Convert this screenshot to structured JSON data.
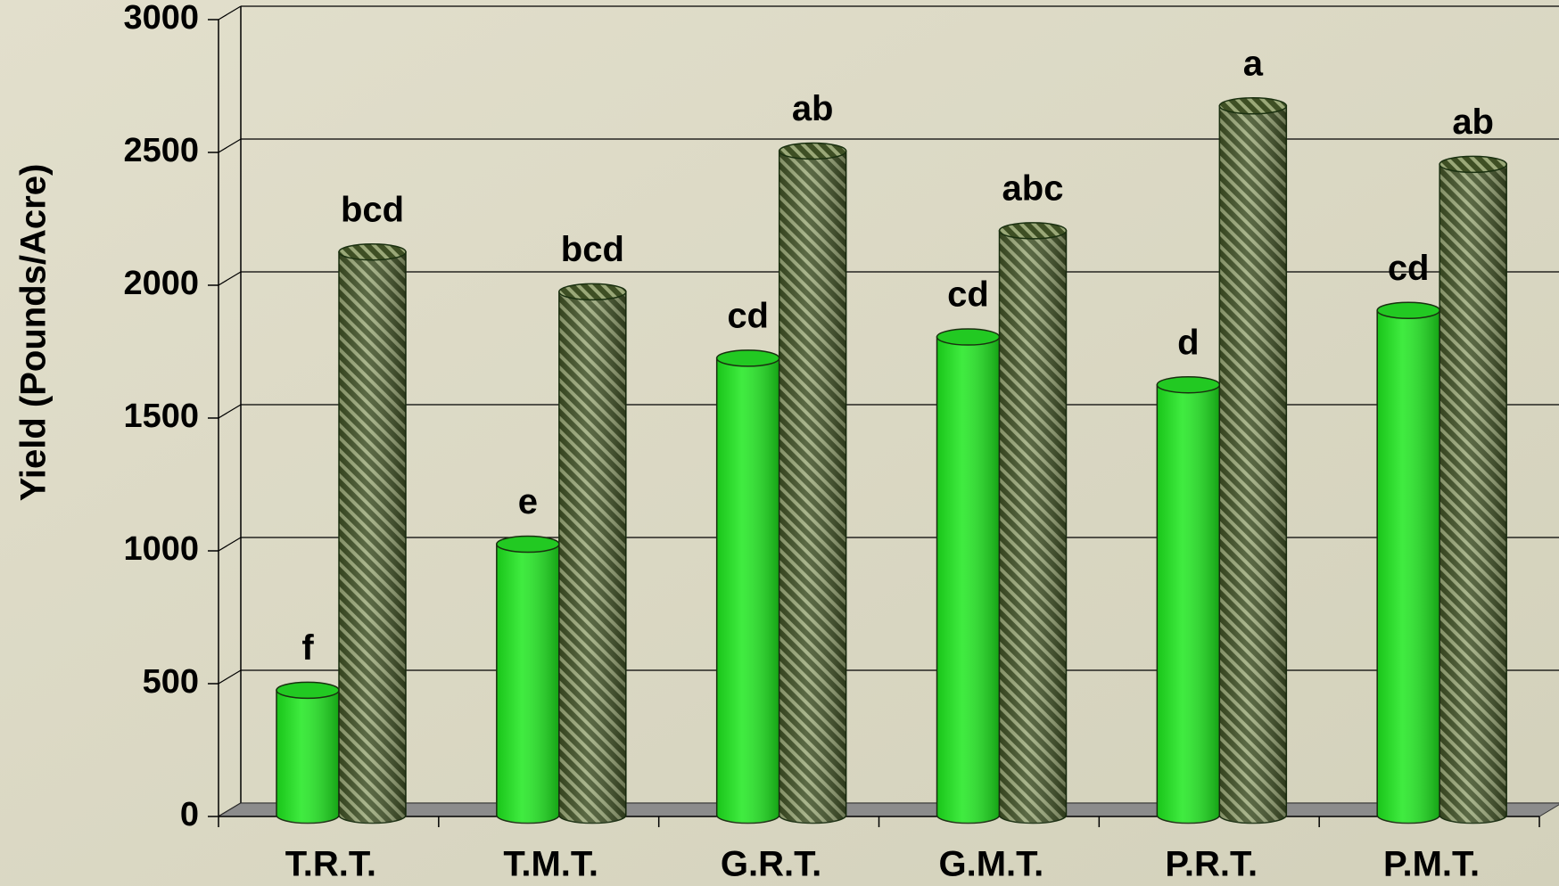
{
  "chart_data": {
    "type": "bar3d",
    "y_label": "Yield (Pounds/Acre)",
    "categories": [
      "T.R.T.",
      "T.M.T.",
      "G.R.T.",
      "G.M.T.",
      "P.R.T.",
      "P.M.T."
    ],
    "series": [
      {
        "color": "#1ee81e",
        "values": [
          450,
          1000,
          1700,
          1780,
          1600,
          1880
        ],
        "letters": [
          "f",
          "e",
          "cd",
          "cd",
          "d",
          "cd"
        ]
      },
      {
        "color": "#4a5e2c",
        "values": [
          2100,
          1950,
          2480,
          2180,
          2650,
          2430
        ],
        "letters": [
          "bcd",
          "bcd",
          "ab",
          "abc",
          "a",
          "ab"
        ]
      }
    ],
    "ylim": [
      0,
      3000
    ],
    "yticks": [
      0,
      500,
      1000,
      1500,
      2000,
      2500,
      3000
    ],
    "grid": true
  }
}
